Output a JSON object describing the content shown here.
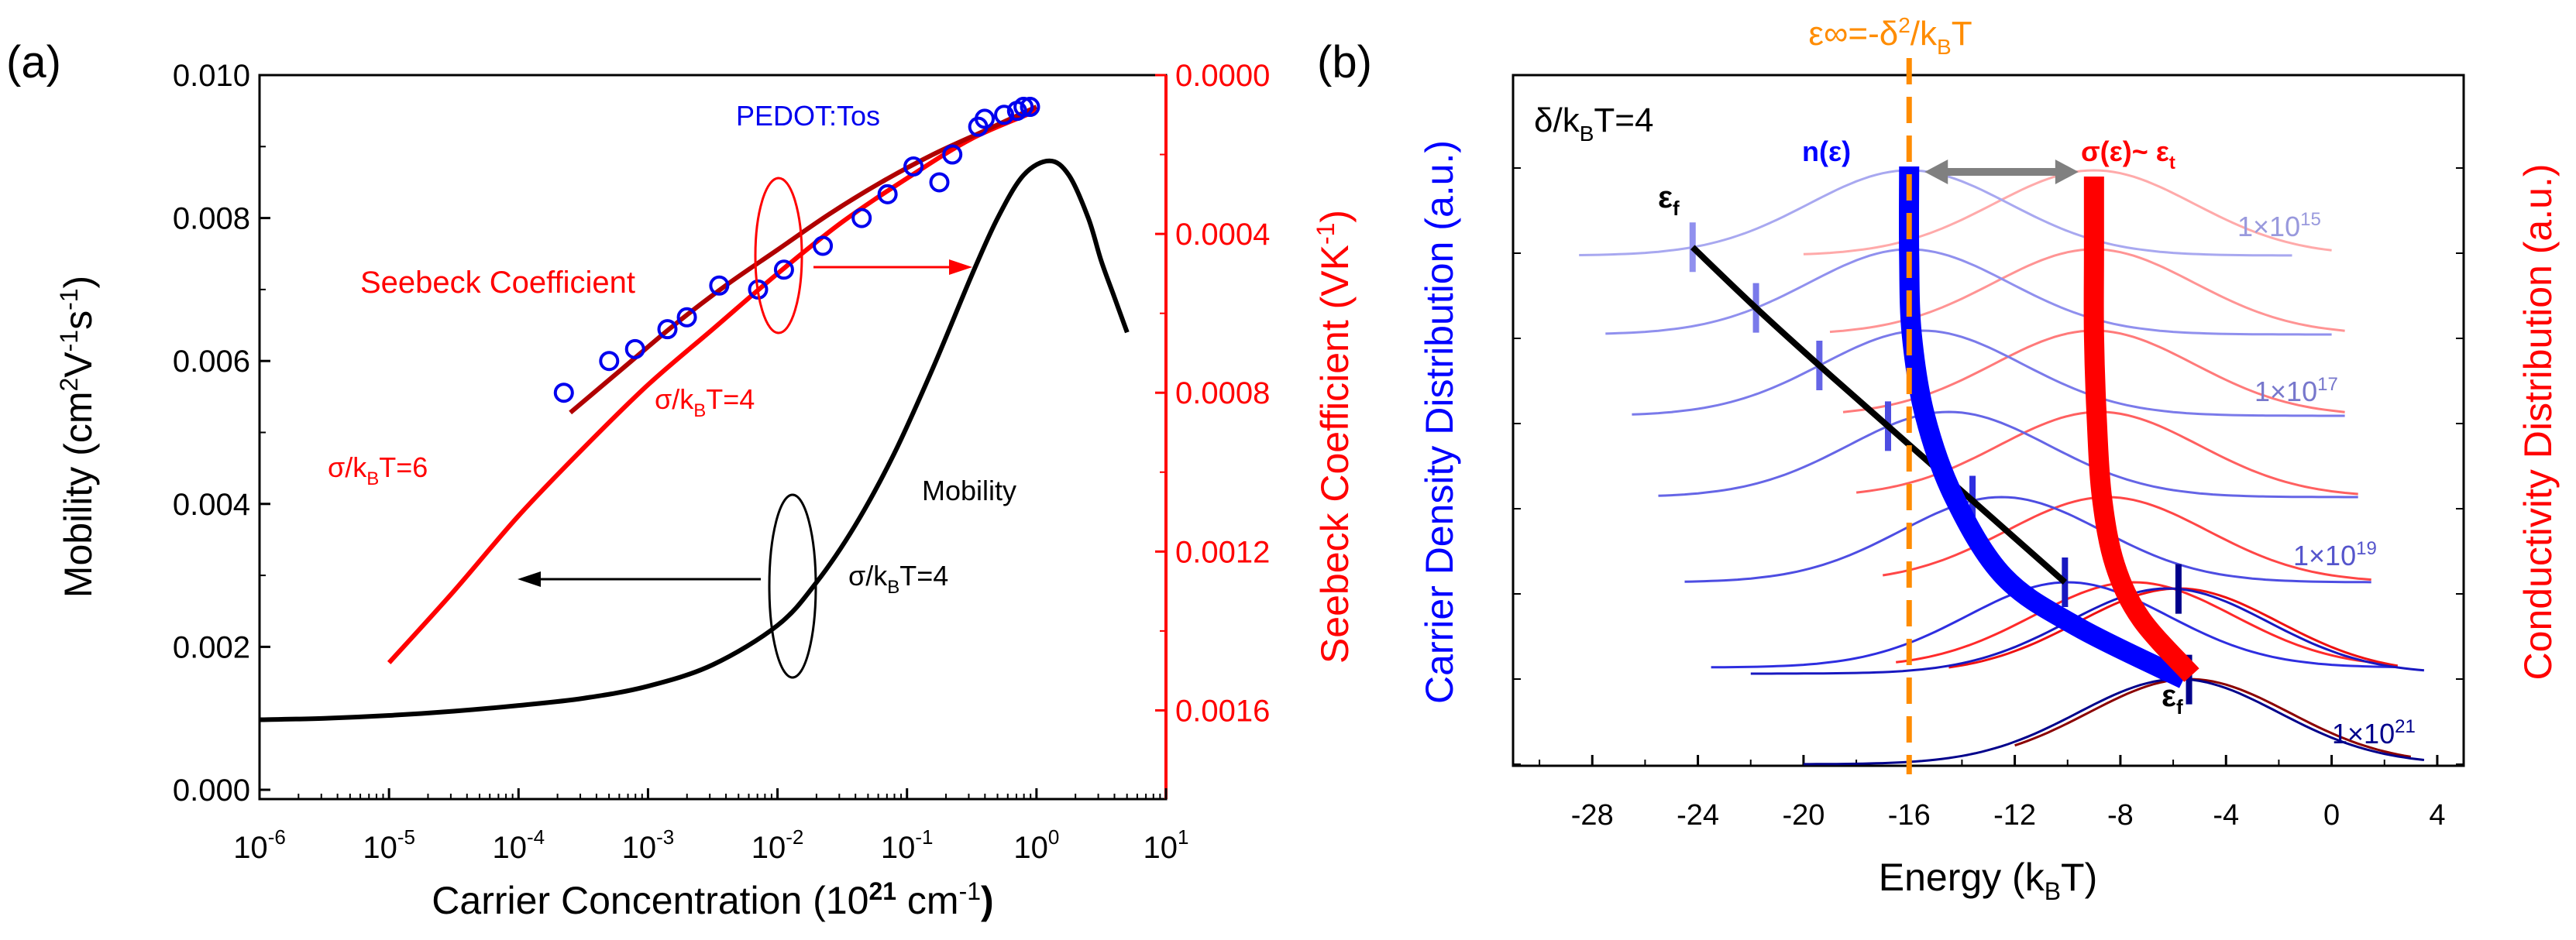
{
  "colors": {
    "axis": "#000000",
    "red": "#ff0000",
    "blue": "#0000ff",
    "navy": "#00008b",
    "darkred": "#8b0000",
    "orange": "#ff8c00",
    "gray": "#808080",
    "dataBlue": "#0000ee"
  },
  "chart_data": [
    {
      "type": "scatter",
      "panel_label": "(a)",
      "x_scale": "log",
      "xlabel": "Carrier Concentration (10",
      "xlabel_sup": "21",
      "xlabel_tail": " cm",
      "xlabel_sup2": "-1",
      "xlabel_close": ")",
      "xlim_exp": [
        -6,
        1
      ],
      "xticks": [
        {
          "exp": -6,
          "base": "10",
          "sup": "-6"
        },
        {
          "exp": -5,
          "base": "10",
          "sup": "-5"
        },
        {
          "exp": -4,
          "base": "10",
          "sup": "-4"
        },
        {
          "exp": -3,
          "base": "10",
          "sup": "-3"
        },
        {
          "exp": -2,
          "base": "10",
          "sup": "-2"
        },
        {
          "exp": -1,
          "base": "10",
          "sup": "-1"
        },
        {
          "exp": 0,
          "base": "10",
          "sup": "0"
        },
        {
          "exp": 1,
          "base": "10",
          "sup": "1"
        }
      ],
      "left_axis": {
        "label_pre": "Mobility (cm",
        "sup1": "2",
        "mid1": "V",
        "sup2": "-1",
        "mid2": "s",
        "sup3": "-1",
        "label_post": ")",
        "ylim": [
          0,
          0.01
        ],
        "ticks": [
          "0.000",
          "0.002",
          "0.004",
          "0.006",
          "0.008",
          "0.010"
        ]
      },
      "right_axis": {
        "label_pre": "Seebeck Coefficient (VK",
        "sup": "-1",
        "label_post": ")",
        "ylim": [
          -0.0018,
          0.0
        ],
        "ticks": [
          {
            "v": 0.0,
            "label": "0.0000"
          },
          {
            "v": -0.0004,
            "label": "0.0004"
          },
          {
            "v": -0.0008,
            "label": "0.0008"
          },
          {
            "v": -0.0012,
            "label": "0.0012"
          },
          {
            "v": -0.0016,
            "label": "0.0016"
          }
        ]
      },
      "series": [
        {
          "name": "Mobility",
          "axis": "left",
          "style": "line",
          "color": "#000000",
          "x_log": [
            -6,
            -5.5,
            -5,
            -4.5,
            -4,
            -3.5,
            -3,
            -2.5,
            -2,
            -1.7,
            -1.4,
            -1.1,
            -0.8,
            -0.5,
            -0.3,
            -0.1,
            0.1,
            0.25,
            0.4,
            0.5,
            0.6,
            0.7
          ],
          "y": [
            0.00098,
            0.001,
            0.00104,
            0.0011,
            0.00118,
            0.00128,
            0.00145,
            0.00175,
            0.0023,
            0.0029,
            0.0037,
            0.0047,
            0.0059,
            0.0072,
            0.008,
            0.0086,
            0.0088,
            0.0086,
            0.008,
            0.0074,
            0.0069,
            0.0064
          ]
        },
        {
          "name": "σ/kBT=6",
          "axis": "right",
          "style": "line",
          "color": "#ff0000",
          "x_log": [
            -5,
            -4.5,
            -4,
            -3.5,
            -3,
            -2.5,
            -2,
            -1.5,
            -1,
            -0.5,
            0
          ],
          "y": [
            -0.00148,
            -0.0013,
            -0.00111,
            -0.00094,
            -0.00078,
            -0.00064,
            -0.0005,
            -0.00037,
            -0.00026,
            -0.00016,
            -9e-05
          ]
        },
        {
          "name": "σ/kBT=4",
          "axis": "right",
          "style": "line",
          "color": "#b00000",
          "x_log": [
            -3.6,
            -3.2,
            -2.8,
            -2.4,
            -2.0,
            -1.6,
            -1.2,
            -0.8,
            -0.4,
            0.0
          ],
          "y": [
            -0.00085,
            -0.00074,
            -0.00063,
            -0.00053,
            -0.00044,
            -0.00035,
            -0.00027,
            -0.0002,
            -0.00014,
            -8e-05
          ]
        },
        {
          "name": "PEDOT:Tos",
          "axis": "right",
          "style": "markers",
          "color": "#0000ee",
          "x_log": [
            -3.65,
            -3.3,
            -3.1,
            -2.85,
            -2.7,
            -2.45,
            -2.15,
            -1.95,
            -1.65,
            -1.35,
            -1.15,
            -0.95,
            -0.75,
            -0.65,
            -0.45,
            -0.4,
            -0.25,
            -0.15,
            -0.1,
            -0.05
          ],
          "y": [
            -0.0008,
            -0.00072,
            -0.00069,
            -0.00064,
            -0.00061,
            -0.00053,
            -0.00054,
            -0.00049,
            -0.00043,
            -0.00036,
            -0.0003,
            -0.00023,
            -0.00027,
            -0.0002,
            -0.00013,
            -0.00011,
            -0.0001,
            -9e-05,
            -8e-05,
            -8e-05
          ]
        }
      ],
      "annotations": [
        {
          "key": "pedot",
          "text": "PEDOT:Tos",
          "color": "#0000ee"
        },
        {
          "key": "seebeck",
          "text": "Seebeck Coefficient",
          "color": "#ff0000"
        },
        {
          "key": "s4",
          "pre": "σ/k",
          "sub": "B",
          "post": "T=4",
          "color": "#ff0000"
        },
        {
          "key": "s6",
          "pre": "σ/k",
          "sub": "B",
          "post": "T=6",
          "color": "#ff0000"
        },
        {
          "key": "mob",
          "text": "Mobility",
          "color": "#000000"
        },
        {
          "key": "s4b",
          "pre": "σ/k",
          "sub": "B",
          "post": "T=4",
          "color": "#000000"
        }
      ]
    },
    {
      "type": "line",
      "panel_label": "(b)",
      "xlabel_pre": "Energy (k",
      "xlabel_sub": "B",
      "xlabel_post": "T)",
      "xlim": [
        -31,
        5
      ],
      "xticks": [
        "-28",
        "-24",
        "-20",
        "-16",
        "-12",
        "-8",
        "-4",
        "0",
        "4"
      ],
      "xtick_values": [
        -28,
        -24,
        -20,
        -16,
        -12,
        -8,
        -4,
        0,
        4
      ],
      "ylabel_left": "Carrier Density Distribution (a.u.)",
      "ylabel_right": "Conductivity Distribution (a.u.)",
      "delta_label_pre": "δ/k",
      "delta_label_sub": "B",
      "delta_label_post": "T=4",
      "top_label_pre": "ε∞=-δ",
      "top_label_sup": "2",
      "top_label_mid": "/k",
      "top_label_sub": "B",
      "top_label_post": "T",
      "eps_inf": -16,
      "sigma_peak_energy": -9,
      "n_label": "n(ε)",
      "sigma_label_pre": "σ(ε)~ ε",
      "sigma_label_sub": "t",
      "ef_label": "ε",
      "ef_sub": "f",
      "concentration_labels": [
        {
          "base": "1×10",
          "sup": "15",
          "row": 0
        },
        {
          "base": "1×10",
          "sup": "17",
          "row": 2
        },
        {
          "base": "1×10",
          "sup": "19",
          "row": 4
        },
        {
          "base": "1×10",
          "sup": "21",
          "row": 6
        }
      ],
      "curves": [
        {
          "mu_n": -16.0,
          "mu_s": -9.0,
          "ef": -24.2,
          "n_start": -28.5,
          "n_end": -1.5,
          "s_start": -20.0,
          "s_end": 0.0
        },
        {
          "mu_n": -16.0,
          "mu_s": -9.0,
          "ef": -21.8,
          "n_start": -27.5,
          "n_end": 0.0,
          "s_start": -19.0,
          "s_end": 0.5
        },
        {
          "mu_n": -15.5,
          "mu_s": -9.0,
          "ef": -19.4,
          "n_start": -26.5,
          "n_end": 0.5,
          "s_start": -18.5,
          "s_end": 0.5
        },
        {
          "mu_n": -14.5,
          "mu_s": -8.8,
          "ef": -16.8,
          "n_start": -25.5,
          "n_end": 1.0,
          "s_start": -18.0,
          "s_end": 1.0
        },
        {
          "mu_n": -12.5,
          "mu_s": -8.5,
          "ef": -13.6,
          "n_start": -24.5,
          "n_end": 1.5,
          "s_start": -17.0,
          "s_end": 1.5
        },
        {
          "mu_n": -10.0,
          "mu_s": -7.5,
          "ef": -10.1,
          "n_start": -23.5,
          "n_end": 2.5,
          "s_start": -16.5,
          "s_end": 2.0
        },
        {
          "mu_n": -6.2,
          "mu_s": -5.8,
          "ef": -5.8,
          "n_start": -22.0,
          "n_end": 3.5,
          "s_start": -14.5,
          "s_end": 2.5
        },
        {
          "mu_n": -5.8,
          "mu_s": -5.4,
          "ef": -5.4,
          "n_start": -20.0,
          "n_end": 3.5,
          "s_start": -12.0,
          "s_end": 3.0
        }
      ]
    }
  ]
}
